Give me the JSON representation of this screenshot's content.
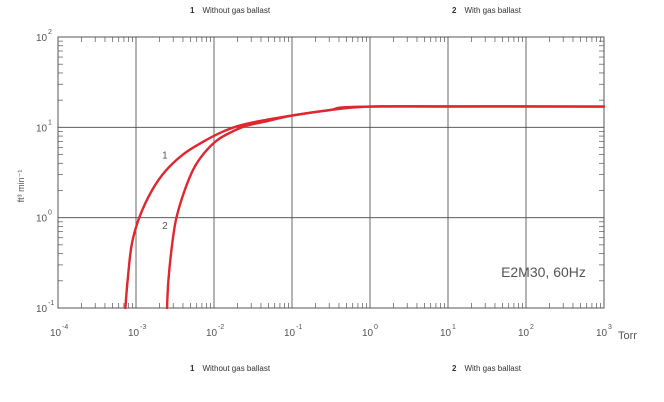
{
  "legend_top": [
    {
      "number": "1",
      "label": "Without gas ballast"
    },
    {
      "number": "2",
      "label": "With gas ballast"
    }
  ],
  "legend_bottom": [
    {
      "number": "1",
      "label": "Without gas ballast"
    },
    {
      "number": "2",
      "label": "With gas ballast"
    }
  ],
  "chart_data": {
    "type": "line",
    "title": "",
    "xlabel": "Torr",
    "ylabel": "ft³ min⁻¹",
    "xscale": "log",
    "yscale": "log",
    "xlim": [
      0.0001,
      1000
    ],
    "ylim": [
      0.1,
      100
    ],
    "x_ticks": [
      {
        "base": "10",
        "exp": "-4",
        "value": 0.0001
      },
      {
        "base": "10",
        "exp": "-3",
        "value": 0.001
      },
      {
        "base": "10",
        "exp": "-2",
        "value": 0.01
      },
      {
        "base": "10",
        "exp": "-1",
        "value": 0.1
      },
      {
        "base": "10",
        "exp": "0",
        "value": 1
      },
      {
        "base": "10",
        "exp": "1",
        "value": 10
      },
      {
        "base": "10",
        "exp": "2",
        "value": 100
      },
      {
        "base": "10",
        "exp": "3",
        "value": 1000
      }
    ],
    "y_ticks": [
      {
        "base": "10",
        "exp": "-1",
        "value": 0.1
      },
      {
        "base": "10",
        "exp": "0",
        "value": 1
      },
      {
        "base": "10",
        "exp": "1",
        "value": 10
      },
      {
        "base": "10",
        "exp": "2",
        "value": 100
      }
    ],
    "grid": true,
    "series": [
      {
        "name": "1",
        "color": "#e0262f",
        "label_at": {
          "x": 0.0012,
          "y": 4.5
        },
        "points": [
          {
            "x": 0.00073,
            "y": 0.1
          },
          {
            "x": 0.00078,
            "y": 0.2
          },
          {
            "x": 0.00088,
            "y": 0.5
          },
          {
            "x": 0.0011,
            "y": 1.0
          },
          {
            "x": 0.0016,
            "y": 2.0
          },
          {
            "x": 0.0024,
            "y": 3.3
          },
          {
            "x": 0.004,
            "y": 5.0
          },
          {
            "x": 0.007,
            "y": 6.8
          },
          {
            "x": 0.012,
            "y": 8.7
          },
          {
            "x": 0.02,
            "y": 10.3
          },
          {
            "x": 0.04,
            "y": 11.8
          },
          {
            "x": 0.1,
            "y": 13.5
          },
          {
            "x": 0.3,
            "y": 15.5
          },
          {
            "x": 1,
            "y": 17
          },
          {
            "x": 10,
            "y": 17
          },
          {
            "x": 100,
            "y": 17
          },
          {
            "x": 1000,
            "y": 17
          }
        ]
      },
      {
        "name": "2",
        "color": "#e0262f",
        "label_at": {
          "x": 0.0012,
          "y": 0.75
        },
        "points": [
          {
            "x": 0.0025,
            "y": 0.1
          },
          {
            "x": 0.0026,
            "y": 0.2
          },
          {
            "x": 0.0029,
            "y": 0.5
          },
          {
            "x": 0.0033,
            "y": 1.0
          },
          {
            "x": 0.0042,
            "y": 2.0
          },
          {
            "x": 0.0055,
            "y": 3.5
          },
          {
            "x": 0.0075,
            "y": 5.2
          },
          {
            "x": 0.011,
            "y": 7.2
          },
          {
            "x": 0.016,
            "y": 8.7
          },
          {
            "x": 0.025,
            "y": 10.3
          },
          {
            "x": 0.05,
            "y": 11.8
          },
          {
            "x": 0.1,
            "y": 13.5
          },
          {
            "x": 0.3,
            "y": 15.5
          },
          {
            "x": 1,
            "y": 17
          },
          {
            "x": 1000,
            "y": 17
          }
        ]
      }
    ],
    "annotations": [
      {
        "text": "E2M30, 60Hz",
        "x": 200,
        "y": 0.22
      }
    ]
  }
}
